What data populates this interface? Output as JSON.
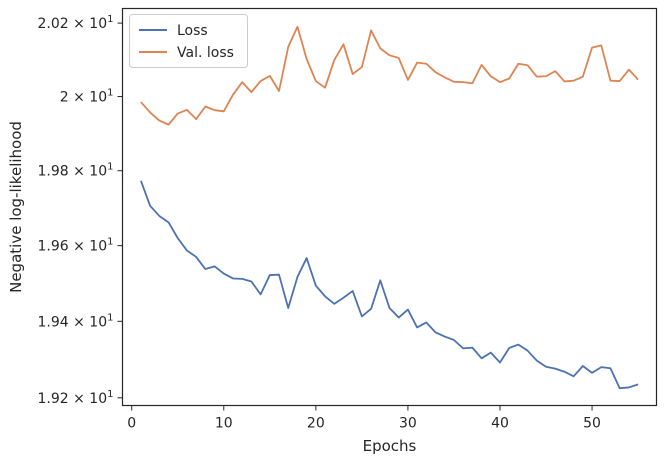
{
  "chart_data": {
    "type": "line",
    "title": "",
    "xlabel": "Epochs",
    "ylabel": "Negative log-likelihood",
    "yscale": "log",
    "xlim": [
      -1,
      57
    ],
    "ylim": [
      19.18,
      20.24
    ],
    "grid": false,
    "legend_placement": "top-left",
    "x_ticks": [
      0,
      10,
      20,
      30,
      40,
      50
    ],
    "y_ticks": [
      {
        "value": 19.2,
        "mantissa": "1.92"
      },
      {
        "value": 19.4,
        "mantissa": "1.94"
      },
      {
        "value": 19.6,
        "mantissa": "1.96"
      },
      {
        "value": 19.8,
        "mantissa": "1.98"
      },
      {
        "value": 20.0,
        "mantissa": "2"
      },
      {
        "value": 20.2,
        "mantissa": "2.02"
      }
    ],
    "y_tick_multiplier": "× 10",
    "y_tick_exponent": "1",
    "x": [
      1,
      2,
      3,
      4,
      5,
      6,
      7,
      8,
      9,
      10,
      11,
      12,
      13,
      14,
      15,
      16,
      17,
      18,
      19,
      20,
      21,
      22,
      23,
      24,
      25,
      26,
      27,
      28,
      29,
      30,
      31,
      32,
      33,
      34,
      35,
      36,
      37,
      38,
      39,
      40,
      41,
      42,
      43,
      44,
      45,
      46,
      47,
      48,
      49,
      50,
      51,
      52,
      53,
      54,
      55
    ],
    "series": [
      {
        "name": "Loss",
        "color": "#4c72b0",
        "values": [
          19.773,
          19.706,
          19.679,
          19.662,
          19.62,
          19.587,
          19.57,
          19.538,
          19.545,
          19.526,
          19.513,
          19.512,
          19.505,
          19.471,
          19.522,
          19.523,
          19.435,
          19.517,
          19.567,
          19.494,
          19.466,
          19.446,
          19.462,
          19.48,
          19.413,
          19.433,
          19.508,
          19.435,
          19.41,
          19.431,
          19.384,
          19.397,
          19.371,
          19.36,
          19.351,
          19.329,
          19.331,
          19.303,
          19.318,
          19.292,
          19.33,
          19.339,
          19.323,
          19.297,
          19.281,
          19.276,
          19.268,
          19.256,
          19.283,
          19.265,
          19.28,
          19.277,
          19.225,
          19.227,
          19.235
        ]
      },
      {
        "name": "Val. loss",
        "color": "#dd8452",
        "values": [
          19.985,
          19.957,
          19.935,
          19.924,
          19.954,
          19.964,
          19.939,
          19.973,
          19.963,
          19.96,
          20.005,
          20.039,
          20.012,
          20.042,
          20.056,
          20.015,
          20.135,
          20.19,
          20.102,
          20.042,
          20.024,
          20.099,
          20.142,
          20.061,
          20.08,
          20.18,
          20.131,
          20.112,
          20.105,
          20.045,
          20.092,
          20.089,
          20.066,
          20.052,
          20.04,
          20.039,
          20.036,
          20.086,
          20.055,
          20.039,
          20.049,
          20.089,
          20.085,
          20.054,
          20.055,
          20.069,
          20.041,
          20.043,
          20.054,
          20.133,
          20.139,
          20.043,
          20.042,
          20.073,
          20.046
        ]
      }
    ]
  }
}
